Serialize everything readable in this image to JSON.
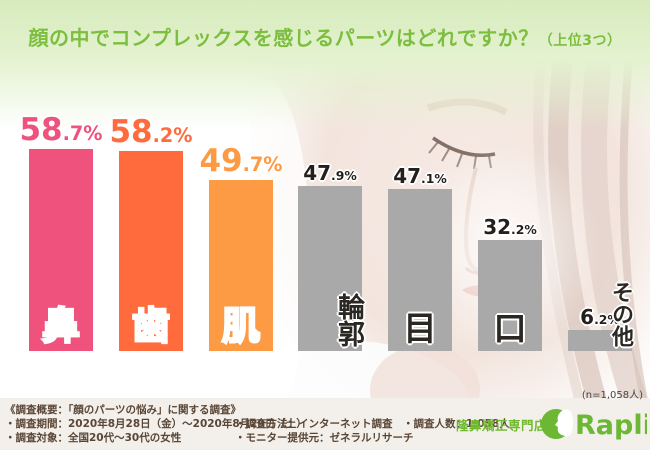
{
  "title": {
    "main": "顔の中でコンプレックスを感じるパーツはどれですか？",
    "suffix": "（上位3つ）"
  },
  "note_n": "(n=1,058人)",
  "chart_data": {
    "type": "bar",
    "title": "顔の中でコンプレックスを感じるパーツはどれですか？（上位3つ）",
    "categories": [
      "鼻",
      "歯",
      "肌",
      "輪郭",
      "目",
      "口",
      "その他"
    ],
    "category_names": [
      "nose",
      "teeth",
      "skin",
      "contour",
      "eyes",
      "mouth",
      "other"
    ],
    "values": [
      58.7,
      58.2,
      49.7,
      47.9,
      47.1,
      32.2,
      6.2
    ],
    "unit": "%",
    "bar_colors": [
      "#EF527D",
      "#FF6B3C",
      "#FD9B45",
      "#A9A9A9",
      "#A9A9A9",
      "#A9A9A9",
      "#A9A9A9"
    ],
    "accent_bars": 3,
    "vertical_label_categories": [
      "輪郭",
      "その他"
    ],
    "ylim": [
      0,
      60
    ],
    "legend": "none",
    "grid": "off",
    "n": "1,058"
  },
  "footer": {
    "heading": "《調査概要：「顔のパーツの悩み」に関する調査》",
    "period": "・調査期間：2020年8月28日（金）～2020年8月29日（土）",
    "target": "・調査対象：全国20代～30代の女性",
    "method": "・調査方法：インターネット調査　・調査人数：1,058人",
    "monitor": "・モニター提供元：ゼネラルリサーチ",
    "shop": "隆鼻矯正専門店",
    "logo_text": "Raplit."
  },
  "colors": {
    "title_green": "#7CBE3E",
    "logo_green": "#6CB733",
    "bar_pink": "#EF527D",
    "bar_orange_red": "#FF6B3C",
    "bar_orange": "#FD9B45",
    "bar_gray": "#A9A9A9",
    "footer_text": "#5A4636",
    "header_green_bg": "#D7EBBC",
    "footer_bg": "#F3F0EB"
  }
}
